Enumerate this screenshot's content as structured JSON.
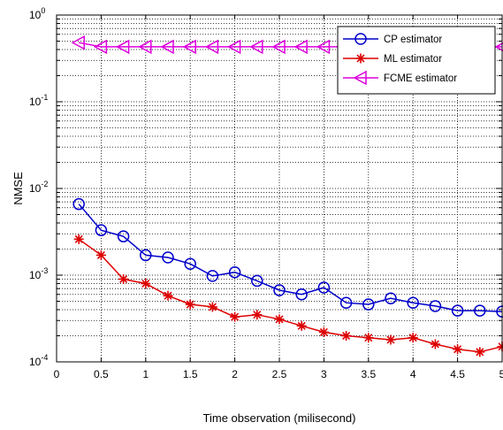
{
  "chart_data": {
    "type": "line",
    "title": "",
    "xlabel": "Time observation (milisecond)",
    "ylabel": "NMSE",
    "xscale": "linear",
    "yscale": "log",
    "xlim": [
      0,
      5
    ],
    "ylim": [
      0.0001,
      1
    ],
    "grid": "major and minor, dotted",
    "legend_position": "top-right",
    "x_ticks": [
      "0",
      "0.5",
      "1",
      "1.5",
      "2",
      "2.5",
      "3",
      "3.5",
      "4",
      "4.5",
      "5"
    ],
    "y_ticks": [
      {
        "base": "10",
        "exp": "-4"
      },
      {
        "base": "10",
        "exp": "-3"
      },
      {
        "base": "10",
        "exp": "-2"
      },
      {
        "base": "10",
        "exp": "-1"
      },
      {
        "base": "10",
        "exp": "0"
      }
    ],
    "x": [
      0.25,
      0.5,
      0.75,
      1.0,
      1.25,
      1.5,
      1.75,
      2.0,
      2.25,
      2.5,
      2.75,
      3.0,
      3.25,
      3.5,
      3.75,
      4.0,
      4.25,
      4.5,
      4.75,
      5.0
    ],
    "series": [
      {
        "name": "CP estimator",
        "color": "#0000cc",
        "marker": "circle",
        "values": [
          0.0066,
          0.0033,
          0.0028,
          0.0017,
          0.0016,
          0.00135,
          0.00098,
          0.00108,
          0.00086,
          0.00067,
          0.0006,
          0.00072,
          0.00048,
          0.00046,
          0.00054,
          0.00048,
          0.00044,
          0.00039,
          0.00039,
          0.00038
        ]
      },
      {
        "name": "ML estimator",
        "color": "#dd0000",
        "marker": "asterisk",
        "values": [
          0.0026,
          0.0017,
          0.0009,
          0.0008,
          0.00058,
          0.00046,
          0.00043,
          0.00033,
          0.00035,
          0.00031,
          0.00026,
          0.00022,
          0.0002,
          0.00019,
          0.00018,
          0.00019,
          0.00016,
          0.00014,
          0.00013,
          0.00015
        ]
      },
      {
        "name": "FCME estimator",
        "color": "#dd00dd",
        "marker": "triangle-left",
        "values": [
          0.48,
          0.43,
          0.43,
          0.43,
          0.43,
          0.43,
          0.43,
          0.43,
          0.43,
          0.43,
          0.43,
          0.43,
          0.43,
          0.43,
          0.43,
          0.43,
          0.43,
          0.43,
          0.43,
          0.43
        ]
      }
    ]
  }
}
